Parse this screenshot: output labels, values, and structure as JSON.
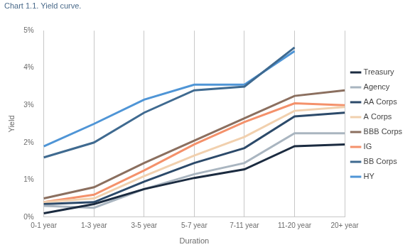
{
  "chart_data": {
    "type": "line",
    "title": "Chart 1.1. Yield curve.",
    "x_label": "Duration",
    "y_label": "Yield",
    "categories": [
      "0-1 year",
      "1-3 year",
      "3-5 year",
      "5-7 year",
      "7-11 year",
      "11-20 year",
      "20+ year"
    ],
    "series": [
      {
        "name": "Treasury",
        "color": "#1b2b40",
        "values": [
          0.1,
          0.35,
          0.75,
          1.05,
          1.28,
          1.9,
          1.95
        ]
      },
      {
        "name": "Agency",
        "color": "#a9b5c0",
        "values": [
          0.3,
          0.25,
          0.75,
          1.15,
          1.45,
          2.25,
          2.25
        ]
      },
      {
        "name": "AA Corps",
        "color": "#2c4a6a",
        "values": [
          0.35,
          0.4,
          0.95,
          1.45,
          1.85,
          2.7,
          2.8
        ]
      },
      {
        "name": "A Corps",
        "color": "#f1d0ae",
        "values": [
          0.4,
          0.5,
          1.1,
          1.65,
          2.15,
          2.85,
          2.95
        ]
      },
      {
        "name": "BBB Corps",
        "color": "#8b6f5f",
        "values": [
          0.5,
          0.8,
          1.45,
          2.05,
          2.65,
          3.25,
          3.4
        ]
      },
      {
        "name": "IG",
        "color": "#f4916b",
        "values": [
          0.4,
          0.6,
          1.25,
          1.95,
          2.55,
          3.05,
          3.0
        ]
      },
      {
        "name": "BB Corps",
        "color": "#3f6a90",
        "values": [
          1.6,
          2.0,
          2.8,
          3.4,
          3.5,
          4.55,
          null
        ]
      },
      {
        "name": "HY",
        "color": "#4f95d6",
        "values": [
          1.9,
          2.5,
          3.15,
          3.55,
          3.55,
          4.45,
          null
        ]
      }
    ],
    "ylim": [
      0,
      5
    ],
    "yticks": [
      {
        "value": 0,
        "label": "0%"
      },
      {
        "value": 1,
        "label": "1%"
      },
      {
        "value": 2,
        "label": "2%"
      },
      {
        "value": 3,
        "label": "3%"
      },
      {
        "value": 4,
        "label": "4%"
      },
      {
        "value": 5,
        "label": "5%"
      }
    ],
    "grid": "x",
    "legend": "right"
  }
}
